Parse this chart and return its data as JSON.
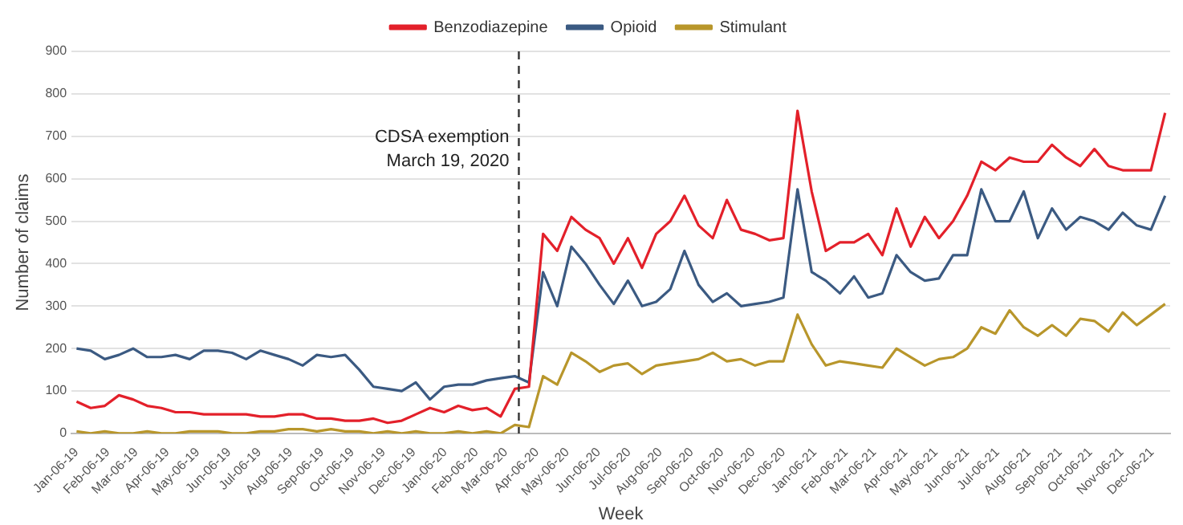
{
  "chart_data": {
    "type": "line",
    "xlabel": "Week",
    "ylabel": "Number of claims",
    "x": [
      "2019-01-06",
      "2019-01-20",
      "2019-02-03",
      "2019-02-17",
      "2019-03-03",
      "2019-03-17",
      "2019-03-31",
      "2019-04-14",
      "2019-04-28",
      "2019-05-12",
      "2019-05-26",
      "2019-06-09",
      "2019-06-23",
      "2019-07-07",
      "2019-07-21",
      "2019-08-04",
      "2019-08-18",
      "2019-09-01",
      "2019-09-15",
      "2019-09-29",
      "2019-10-13",
      "2019-10-27",
      "2019-11-10",
      "2019-11-24",
      "2019-12-08",
      "2019-12-22",
      "2020-01-05",
      "2020-01-19",
      "2020-02-02",
      "2020-02-16",
      "2020-03-01",
      "2020-03-15",
      "2020-03-29",
      "2020-04-12",
      "2020-04-26",
      "2020-05-10",
      "2020-05-24",
      "2020-06-07",
      "2020-06-21",
      "2020-07-05",
      "2020-07-19",
      "2020-08-02",
      "2020-08-16",
      "2020-08-30",
      "2020-09-13",
      "2020-09-27",
      "2020-10-11",
      "2020-10-25",
      "2020-11-08",
      "2020-11-22",
      "2020-12-06",
      "2020-12-20",
      "2021-01-03",
      "2021-01-17",
      "2021-01-31",
      "2021-02-14",
      "2021-02-28",
      "2021-03-14",
      "2021-03-28",
      "2021-04-11",
      "2021-04-25",
      "2021-05-09",
      "2021-05-23",
      "2021-06-06",
      "2021-06-20",
      "2021-07-04",
      "2021-07-18",
      "2021-08-01",
      "2021-08-15",
      "2021-08-29",
      "2021-09-12",
      "2021-09-26",
      "2021-10-10",
      "2021-10-24",
      "2021-11-07",
      "2021-11-21",
      "2021-12-05",
      "2021-12-19"
    ],
    "series": [
      {
        "name": "Benzodiazepine",
        "color": "#e3202a",
        "values": [
          75,
          60,
          65,
          90,
          80,
          65,
          60,
          50,
          50,
          45,
          45,
          45,
          45,
          40,
          40,
          45,
          45,
          35,
          35,
          30,
          30,
          35,
          25,
          30,
          45,
          60,
          50,
          65,
          55,
          60,
          40,
          105,
          110,
          470,
          430,
          510,
          480,
          460,
          400,
          460,
          390,
          470,
          500,
          560,
          490,
          460,
          550,
          480,
          470,
          455,
          460,
          760,
          570,
          430,
          450,
          450,
          470,
          420,
          530,
          440,
          510,
          460,
          500,
          560,
          640,
          620,
          650,
          640,
          640,
          680,
          650,
          630,
          670,
          630,
          620,
          620,
          620,
          755
        ]
      },
      {
        "name": "Opioid",
        "color": "#3b5a82",
        "values": [
          200,
          195,
          175,
          185,
          200,
          180,
          180,
          185,
          175,
          195,
          195,
          190,
          175,
          195,
          185,
          175,
          160,
          185,
          180,
          185,
          150,
          110,
          105,
          100,
          120,
          80,
          110,
          115,
          115,
          125,
          130,
          135,
          120,
          380,
          300,
          440,
          400,
          350,
          305,
          360,
          300,
          310,
          340,
          430,
          350,
          310,
          330,
          300,
          305,
          310,
          320,
          575,
          380,
          360,
          330,
          370,
          320,
          330,
          420,
          380,
          360,
          365,
          420,
          420,
          575,
          500,
          500,
          570,
          460,
          530,
          480,
          510,
          500,
          480,
          520,
          490,
          480,
          560
        ]
      },
      {
        "name": "Stimulant",
        "color": "#b8962b",
        "values": [
          5,
          0,
          5,
          0,
          0,
          5,
          0,
          0,
          5,
          5,
          5,
          0,
          0,
          5,
          5,
          10,
          10,
          5,
          10,
          5,
          5,
          0,
          5,
          0,
          5,
          0,
          0,
          5,
          0,
          5,
          0,
          20,
          15,
          135,
          115,
          190,
          170,
          145,
          160,
          165,
          140,
          160,
          165,
          170,
          175,
          190,
          170,
          175,
          160,
          170,
          170,
          280,
          210,
          160,
          170,
          165,
          160,
          155,
          200,
          180,
          160,
          175,
          180,
          200,
          250,
          235,
          290,
          250,
          230,
          255,
          230,
          270,
          265,
          240,
          285,
          255,
          280,
          305
        ]
      }
    ],
    "xlim": [
      "2019-01-01",
      "2021-12-24"
    ],
    "xticks": [
      {
        "value": "2019-01-06",
        "label": "Jan-06-19"
      },
      {
        "value": "2019-02-06",
        "label": "Feb-06-19"
      },
      {
        "value": "2019-03-06",
        "label": "Mar-06-19"
      },
      {
        "value": "2019-04-06",
        "label": "Apr-06-19"
      },
      {
        "value": "2019-05-06",
        "label": "May-06-19"
      },
      {
        "value": "2019-06-06",
        "label": "Jun-06-19"
      },
      {
        "value": "2019-07-06",
        "label": "Jul-06-19"
      },
      {
        "value": "2019-08-06",
        "label": "Aug-06-19"
      },
      {
        "value": "2019-09-06",
        "label": "Sep-06-19"
      },
      {
        "value": "2019-10-06",
        "label": "Oct-06-19"
      },
      {
        "value": "2019-11-06",
        "label": "Nov-06-19"
      },
      {
        "value": "2019-12-06",
        "label": "Dec-06-19"
      },
      {
        "value": "2020-01-06",
        "label": "Jan-06-20"
      },
      {
        "value": "2020-02-06",
        "label": "Feb-06-20"
      },
      {
        "value": "2020-03-06",
        "label": "Mar-06-20"
      },
      {
        "value": "2020-04-06",
        "label": "Apr-06-20"
      },
      {
        "value": "2020-05-06",
        "label": "May-06-20"
      },
      {
        "value": "2020-06-06",
        "label": "Jun-06-20"
      },
      {
        "value": "2020-07-06",
        "label": "Jul-06-20"
      },
      {
        "value": "2020-08-06",
        "label": "Aug-06-20"
      },
      {
        "value": "2020-09-06",
        "label": "Sep-06-20"
      },
      {
        "value": "2020-10-06",
        "label": "Oct-06-20"
      },
      {
        "value": "2020-11-06",
        "label": "Nov-06-20"
      },
      {
        "value": "2020-12-06",
        "label": "Dec-06-20"
      },
      {
        "value": "2021-01-06",
        "label": "Jan-06-21"
      },
      {
        "value": "2021-02-06",
        "label": "Feb-06-21"
      },
      {
        "value": "2021-03-06",
        "label": "Mar-06-21"
      },
      {
        "value": "2021-04-06",
        "label": "Apr-06-21"
      },
      {
        "value": "2021-05-06",
        "label": "May-06-21"
      },
      {
        "value": "2021-06-06",
        "label": "Jun-06-21"
      },
      {
        "value": "2021-07-06",
        "label": "Jul-06-21"
      },
      {
        "value": "2021-08-06",
        "label": "Aug-06-21"
      },
      {
        "value": "2021-09-06",
        "label": "Sep-06-21"
      },
      {
        "value": "2021-10-06",
        "label": "Oct-06-21"
      },
      {
        "value": "2021-11-06",
        "label": "Nov-06-21"
      },
      {
        "value": "2021-12-06",
        "label": "Dec-06-21"
      }
    ],
    "ylim": [
      0,
      900
    ],
    "yticks": [
      0,
      100,
      200,
      300,
      400,
      500,
      600,
      700,
      800,
      900
    ],
    "ref_lines": [
      {
        "axis": "x",
        "value": "2020-03-19",
        "label": "CDSA exemption\nMarch 19, 2020",
        "color": "#333333",
        "line_style": "dashed"
      }
    ],
    "grid": "y",
    "legend": "top",
    "marker": "none",
    "line_style": "solid"
  }
}
